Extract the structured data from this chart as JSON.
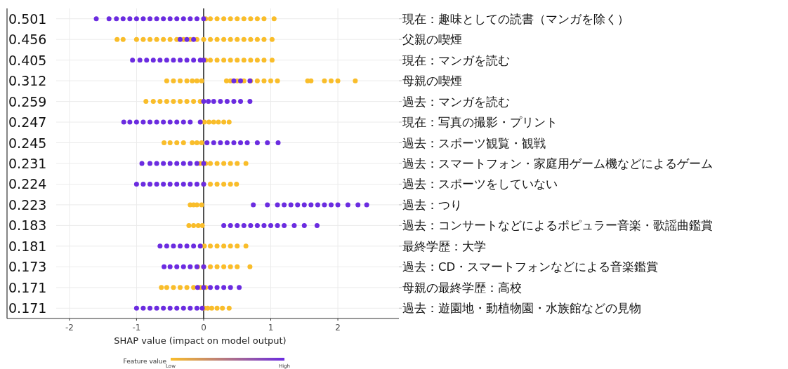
{
  "chart_data": {
    "type": "scatter",
    "orientation": "horizontal",
    "xlabel": "SHAP value (impact on model output)",
    "clabel": "Feature value",
    "clim": [
      0,
      1
    ],
    "cticks": [
      {
        "value": 0,
        "label": "Low"
      },
      {
        "value": 1,
        "label": "High"
      }
    ],
    "xlim": [
      -2.93,
      2.91
    ],
    "xticks": [
      -2,
      -1,
      0,
      1,
      2
    ],
    "grid": true,
    "marker": "circle",
    "ref_lines": [
      {
        "axis": "x",
        "value": 0,
        "color": "#000000"
      }
    ],
    "y2_categories": [
      "0.501",
      "0.456",
      "0.405",
      "0.312",
      "0.259",
      "0.247",
      "0.245",
      "0.231",
      "0.224",
      "0.223",
      "0.183",
      "0.181",
      "0.173",
      "0.171",
      "0.171"
    ],
    "categories": [
      "現在：趣味としての読書（マンガを除く）",
      "父親の喫煙",
      "現在：マンガを読む",
      "母親の喫煙",
      "過去：マンガを読む",
      "現在：写真の撮影・プリント",
      "過去：スポーツ観覧・観戦",
      "過去：スマートフォン・家庭用ゲーム機などによるゲーム",
      "過去：スポーツをしていない",
      "過去：つり",
      "過去：コンサートなどによるポピュラー音楽・歌謡曲鑑賞",
      "最終学歴：大学",
      "過去：CD・スマートフォンなどによる音楽鑑賞",
      "母親の最終学歴：高校",
      "過去：遊園地・動植物園・水族館などの見物"
    ],
    "series": [
      {
        "color": "#f9bd2a",
        "x": [
          "現在：趣味としての読書（マンガを除く）",
          "現在：趣味としての読書（マンガを除く）",
          "現在：趣味としての読書（マンガを除く）",
          "現在：趣味としての読書（マンガを除く）",
          "現在：趣味としての読書（マンガを除く）",
          "現在：趣味としての読書（マンガを除く）",
          "現在：趣味としての読書（マンガを除く）",
          "現在：趣味としての読書（マンガを除く）",
          "現在：趣味としての読書（マンガを除く）",
          "現在：趣味としての読書（マンガを除く）",
          "現在：趣味としての読書（マンガを除く）",
          "父親の喫煙",
          "父親の喫煙",
          "父親の喫煙",
          "父親の喫煙",
          "父親の喫煙",
          "父親の喫煙",
          "父親の喫煙",
          "父親の喫煙",
          "父親の喫煙",
          "父親の喫煙",
          "父親の喫煙",
          "父親の喫煙",
          "父親の喫煙",
          "父親の喫煙",
          "父親の喫煙",
          "父親の喫煙",
          "父親の喫煙",
          "父親の喫煙",
          "父親の喫煙",
          "父親の喫煙",
          "父親の喫煙",
          "父親の喫煙",
          "父親の喫煙",
          "現在：マンガを読む",
          "現在：マンガを読む",
          "現在：マンガを読む",
          "現在：マンガを読む",
          "現在：マンガを読む",
          "現在：マンガを読む",
          "現在：マンガを読む",
          "現在：マンガを読む",
          "現在：マンガを読む",
          "現在：マンガを読む",
          "現在：マンガを読む",
          "母親の喫煙",
          "母親の喫煙",
          "母親の喫煙",
          "母親の喫煙",
          "母親の喫煙",
          "母親の喫煙",
          "母親の喫煙",
          "母親の喫煙",
          "母親の喫煙",
          "母親の喫煙",
          "母親の喫煙",
          "母親の喫煙",
          "母親の喫煙",
          "母親の喫煙",
          "母親の喫煙",
          "母親の喫煙",
          "母親の喫煙",
          "母親の喫煙",
          "母親の喫煙",
          "母親の喫煙",
          "母親の喫煙",
          "母親の喫煙",
          "過去：マンガを読む",
          "過去：マンガを読む",
          "過去：マンガを読む",
          "過去：マンガを読む",
          "過去：マンガを読む",
          "過去：マンガを読む",
          "過去：マンガを読む",
          "過去：マンガを読む",
          "過去：マンガを読む",
          "現在：写真の撮影・プリント",
          "現在：写真の撮影・プリント",
          "現在：写真の撮影・プリント",
          "現在：写真の撮影・プリント",
          "現在：写真の撮影・プリント",
          "現在：写真の撮影・プリント",
          "過去：スポーツ観覧・観戦",
          "過去：スポーツ観覧・観戦",
          "過去：スポーツ観覧・観戦",
          "過去：スポーツ観覧・観戦",
          "過去：スポーツ観覧・観戦",
          "過去：スポーツ観覧・観戦",
          "過去：スポーツ観覧・観戦",
          "過去：スマートフォン・家庭用ゲーム機などによるゲーム",
          "過去：スマートフォン・家庭用ゲーム機などによるゲーム",
          "過去：スマートフォン・家庭用ゲーム機などによるゲーム",
          "過去：スマートフォン・家庭用ゲーム機などによるゲーム",
          "過去：スマートフォン・家庭用ゲーム機などによるゲーム",
          "過去：スマートフォン・家庭用ゲーム機などによるゲーム",
          "過去：スマートフォン・家庭用ゲーム機などによるゲーム",
          "過去：スマートフォン・家庭用ゲーム機などによるゲーム",
          "過去：スポーツをしていない",
          "過去：スポーツをしていない",
          "過去：スポーツをしていない",
          "過去：スポーツをしていない",
          "過去：スポーツをしていない",
          "過去：スポーツをしていない",
          "過去：つり",
          "過去：つり",
          "過去：つり",
          "過去：つり",
          "過去：コンサートなどによるポピュラー音楽・歌謡曲鑑賞",
          "過去：コンサートなどによるポピュラー音楽・歌謡曲鑑賞",
          "過去：コンサートなどによるポピュラー音楽・歌謡曲鑑賞",
          "過去：コンサートなどによるポピュラー音楽・歌謡曲鑑賞",
          "最終学歴：大学",
          "最終学歴：大学",
          "最終学歴：大学",
          "最終学歴：大学",
          "最終学歴：大学",
          "最終学歴：大学",
          "最終学歴：大学",
          "過去：CD・スマートフォンなどによる音楽鑑賞",
          "過去：CD・スマートフォンなどによる音楽鑑賞",
          "過去：CD・スマートフォンなどによる音楽鑑賞",
          "過去：CD・スマートフォンなどによる音楽鑑賞",
          "過去：CD・スマートフォンなどによる音楽鑑賞",
          "過去：CD・スマートフォンなどによる音楽鑑賞",
          "過去：CD・スマートフォンなどによる音楽鑑賞",
          "過去：CD・スマートフォンなどによる音楽鑑賞",
          "母親の最終学歴：高校",
          "母親の最終学歴：高校",
          "母親の最終学歴：高校",
          "母親の最終学歴：高校",
          "母親の最終学歴：高校",
          "母親の最終学歴：高校",
          "母親の最終学歴：高校",
          "母親の最終学歴：高校",
          "過去：遊園地・動植物園・水族館などの見物",
          "過去：遊園地・動植物園・水族館などの見物",
          "過去：遊園地・動植物園・水族館などの見物",
          "過去：遊園地・動植物園・水族館などの見物",
          "過去：遊園地・動植物園・水族館などの見物",
          "過去：遊園地・動植物園・水族館などの見物"
        ],
        "values": [
          0.03,
          0.1,
          0.2,
          0.3,
          0.4,
          0.5,
          0.6,
          0.7,
          0.8,
          0.9,
          1.05,
          -1.29,
          -1.2,
          -1.0,
          -0.9,
          -0.8,
          -0.7,
          -0.6,
          -0.5,
          -0.4,
          -0.3,
          -0.2,
          -0.1,
          0.0,
          0.1,
          0.2,
          0.3,
          0.4,
          0.5,
          0.6,
          0.7,
          0.8,
          0.9,
          1.02,
          0.03,
          0.1,
          0.2,
          0.3,
          0.4,
          0.5,
          0.6,
          0.7,
          0.8,
          0.9,
          1.02,
          -0.55,
          -0.45,
          -0.35,
          -0.25,
          -0.17,
          -0.1,
          -0.03,
          0.34,
          0.4,
          0.5,
          0.6,
          0.7,
          0.8,
          0.9,
          1.0,
          1.1,
          1.55,
          1.6,
          1.8,
          1.9,
          2.0,
          2.26,
          -0.86,
          -0.75,
          -0.65,
          -0.55,
          -0.45,
          -0.35,
          -0.25,
          -0.15,
          -0.05,
          0.01,
          0.08,
          0.15,
          0.22,
          0.3,
          0.38,
          -0.59,
          -0.5,
          -0.4,
          -0.3,
          -0.17,
          -0.1,
          -0.03,
          -0.05,
          0.03,
          0.1,
          0.2,
          0.3,
          0.4,
          0.5,
          0.63,
          0.0,
          0.1,
          0.2,
          0.3,
          0.4,
          0.49,
          -0.2,
          -0.15,
          -0.1,
          -0.03,
          -0.22,
          -0.15,
          -0.08,
          -0.02,
          0.01,
          0.1,
          0.2,
          0.3,
          0.4,
          0.5,
          0.63,
          -0.09,
          0.0,
          0.1,
          0.2,
          0.3,
          0.4,
          0.5,
          0.69,
          -0.63,
          -0.55,
          -0.45,
          -0.35,
          -0.25,
          -0.15,
          -0.05,
          0.03,
          0.01,
          0.06,
          0.12,
          0.2,
          0.28,
          0.38
        ]
      },
      {
        "color": "#6b2ce0",
        "x": [
          "現在：趣味としての読書（マンガを除く）",
          "現在：趣味としての読書（マンガを除く）",
          "現在：趣味としての読書（マンガを除く）",
          "現在：趣味としての読書（マンガを除く）",
          "現在：趣味としての読書（マンガを除く）",
          "現在：趣味としての読書（マンガを除く）",
          "現在：趣味としての読書（マンガを除く）",
          "現在：趣味としての読書（マンガを除く）",
          "現在：趣味としての読書（マンガを除く）",
          "現在：趣味としての読書（マンガを除く）",
          "現在：趣味としての読書（マンガを除く）",
          "現在：趣味としての読書（マンガを除く）",
          "現在：趣味としての読書（マンガを除く）",
          "現在：趣味としての読書（マンガを除く）",
          "現在：趣味としての読書（マンガを除く）",
          "現在：趣味としての読書（マンガを除く）",
          "父親の喫煙",
          "父親の喫煙",
          "父親の喫煙",
          "現在：マンガを読む",
          "現在：マンガを読む",
          "現在：マンガを読む",
          "現在：マンガを読む",
          "現在：マンガを読む",
          "現在：マンガを読む",
          "現在：マンガを読む",
          "現在：マンガを読む",
          "現在：マンガを読む",
          "現在：マンガを読む",
          "現在：マンガを読む",
          "現在：マンガを読む",
          "母親の喫煙",
          "母親の喫煙",
          "母親の喫煙",
          "過去：マンガを読む",
          "過去：マンガを読む",
          "過去：マンガを読む",
          "過去：マンガを読む",
          "過去：マンガを読む",
          "過去：マンガを読む",
          "過去：マンガを読む",
          "過去：マンガを読む",
          "現在：写真の撮影・プリント",
          "現在：写真の撮影・プリント",
          "現在：写真の撮影・プリント",
          "現在：写真の撮影・プリント",
          "現在：写真の撮影・プリント",
          "現在：写真の撮影・プリント",
          "現在：写真の撮影・プリント",
          "現在：写真の撮影・プリント",
          "現在：写真の撮影・プリント",
          "現在：写真の撮影・プリント",
          "現在：写真の撮影・プリント",
          "現在：写真の撮影・プリント",
          "過去：スポーツ観覧・観戦",
          "過去：スポーツ観覧・観戦",
          "過去：スポーツ観覧・観戦",
          "過去：スポーツ観覧・観戦",
          "過去：スポーツ観覧・観戦",
          "過去：スポーツ観覧・観戦",
          "過去：スポーツ観覧・観戦",
          "過去：スポーツ観覧・観戦",
          "過去：スポーツ観覧・観戦",
          "過去：スポーツ観覧・観戦",
          "過去：スマートフォン・家庭用ゲーム機などによるゲーム",
          "過去：スマートフォン・家庭用ゲーム機などによるゲーム",
          "過去：スマートフォン・家庭用ゲーム機などによるゲーム",
          "過去：スマートフォン・家庭用ゲーム機などによるゲーム",
          "過去：スマートフォン・家庭用ゲーム機などによるゲーム",
          "過去：スマートフォン・家庭用ゲーム機などによるゲーム",
          "過去：スマートフォン・家庭用ゲーム機などによるゲーム",
          "過去：スマートフォン・家庭用ゲーム機などによるゲーム",
          "過去：スマートフォン・家庭用ゲーム機などによるゲーム",
          "過去：スマートフォン・家庭用ゲーム機などによるゲーム",
          "過去：スポーツをしていない",
          "過去：スポーツをしていない",
          "過去：スポーツをしていない",
          "過去：スポーツをしていない",
          "過去：スポーツをしていない",
          "過去：スポーツをしていない",
          "過去：スポーツをしていない",
          "過去：スポーツをしていない",
          "過去：スポーツをしていない",
          "過去：スポーツをしていない",
          "過去：スポーツをしていない",
          "過去：つり",
          "過去：つり",
          "過去：つり",
          "過去：つり",
          "過去：つり",
          "過去：つり",
          "過去：つり",
          "過去：つり",
          "過去：つり",
          "過去：つり",
          "過去：つり",
          "過去：つり",
          "過去：つり",
          "過去：つり",
          "過去：つり",
          "過去：コンサートなどによるポピュラー音楽・歌謡曲鑑賞",
          "過去：コンサートなどによるポピュラー音楽・歌謡曲鑑賞",
          "過去：コンサートなどによるポピュラー音楽・歌謡曲鑑賞",
          "過去：コンサートなどによるポピュラー音楽・歌謡曲鑑賞",
          "過去：コンサートなどによるポピュラー音楽・歌謡曲鑑賞",
          "過去：コンサートなどによるポピュラー音楽・歌謡曲鑑賞",
          "過去：コンサートなどによるポピュラー音楽・歌謡曲鑑賞",
          "過去：コンサートなどによるポピュラー音楽・歌謡曲鑑賞",
          "過去：コンサートなどによるポピュラー音楽・歌謡曲鑑賞",
          "過去：コンサートなどによるポピュラー音楽・歌謡曲鑑賞",
          "過去：コンサートなどによるポピュラー音楽・歌謡曲鑑賞",
          "過去：コンサートなどによるポピュラー音楽・歌謡曲鑑賞",
          "過去：コンサートなどによるポピュラー音楽・歌謡曲鑑賞",
          "最終学歴：大学",
          "最終学歴：大学",
          "最終学歴：大学",
          "最終学歴：大学",
          "最終学歴：大学",
          "最終学歴：大学",
          "最終学歴：大学",
          "過去：CD・スマートフォンなどによる音楽鑑賞",
          "過去：CD・スマートフォンなどによる音楽鑑賞",
          "過去：CD・スマートフォンなどによる音楽鑑賞",
          "過去：CD・スマートフォンなどによる音楽鑑賞",
          "過去：CD・スマートフォンなどによる音楽鑑賞",
          "過去：CD・スマートフォンなどによる音楽鑑賞",
          "過去：CD・スマートフォンなどによる音楽鑑賞",
          "母親の最終学歴：高校",
          "母親の最終学歴：高校",
          "母親の最終学歴：高校",
          "母親の最終学歴：高校",
          "母親の最終学歴：高校",
          "母親の最終学歴：高校",
          "母親の最終学歴：高校",
          "過去：遊園地・動植物園・水族館などの見物",
          "過去：遊園地・動植物園・水族館などの見物",
          "過去：遊園地・動植物園・水族館などの見物",
          "過去：遊園地・動植物園・水族館などの見物",
          "過去：遊園地・動植物園・水族館などの見物",
          "過去：遊園地・動植物園・水族館などの見物",
          "過去：遊園地・動植物園・水族館などの見物",
          "過去：遊園地・動植物園・水族館などの見物",
          "過去：遊園地・動植物園・水族館などの見物",
          "過去：遊園地・動植物園・水族館などの見物",
          "過去：遊園地・動植物園・水族館などの見物"
        ],
        "values": [
          -1.6,
          -1.41,
          -1.3,
          -1.2,
          -1.1,
          -1.0,
          -0.9,
          -0.8,
          -0.7,
          -0.6,
          -0.5,
          -0.4,
          -0.3,
          -0.2,
          -0.1,
          0.0,
          -0.35,
          -0.25,
          -0.15,
          -1.06,
          -0.95,
          -0.85,
          -0.75,
          -0.65,
          -0.55,
          -0.45,
          -0.35,
          -0.25,
          -0.15,
          -0.05,
          0.0,
          0.45,
          0.55,
          0.69,
          0.0,
          0.07,
          0.15,
          0.25,
          0.35,
          0.45,
          0.55,
          0.69,
          -1.19,
          -1.1,
          -1.0,
          -0.9,
          -0.8,
          -0.7,
          -0.6,
          -0.5,
          -0.4,
          -0.3,
          -0.2,
          -0.05,
          0.05,
          0.15,
          0.25,
          0.35,
          0.45,
          0.55,
          0.65,
          0.8,
          0.95,
          1.11,
          -0.92,
          -0.8,
          -0.7,
          -0.6,
          -0.5,
          -0.4,
          -0.3,
          -0.2,
          -0.1,
          0.0,
          -1.0,
          -0.9,
          -0.8,
          -0.7,
          -0.6,
          -0.5,
          -0.4,
          -0.3,
          -0.2,
          -0.1,
          0.0,
          0.74,
          0.95,
          1.1,
          1.2,
          1.3,
          1.4,
          1.5,
          1.6,
          1.7,
          1.8,
          1.9,
          2.0,
          2.15,
          2.3,
          2.43,
          0.3,
          0.4,
          0.5,
          0.6,
          0.7,
          0.8,
          0.9,
          1.0,
          1.1,
          1.2,
          1.35,
          1.5,
          1.69,
          -0.65,
          -0.55,
          -0.45,
          -0.35,
          -0.25,
          -0.15,
          -0.05,
          -0.59,
          -0.5,
          -0.4,
          -0.3,
          -0.2,
          -0.1,
          0.0,
          -0.09,
          0.0,
          0.1,
          0.2,
          0.3,
          0.4,
          0.53,
          -1.0,
          -0.9,
          -0.8,
          -0.7,
          -0.6,
          -0.5,
          -0.4,
          -0.3,
          -0.2,
          -0.1,
          -0.02
        ]
      }
    ]
  }
}
